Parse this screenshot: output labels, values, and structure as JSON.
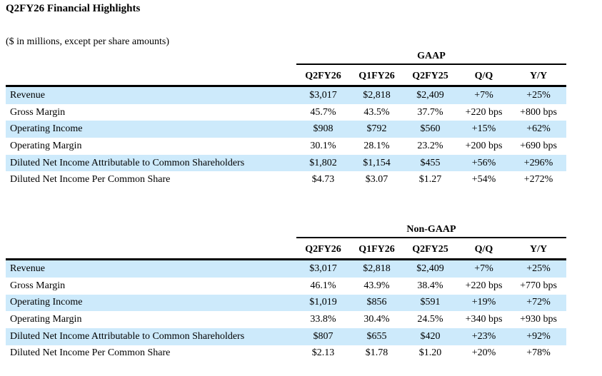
{
  "title": "Q2FY26 Financial Highlights",
  "subtitle": "($ in millions, except per share amounts)",
  "colors": {
    "stripe": "#cdeafb",
    "text": "#000000"
  },
  "tables": [
    {
      "group": "GAAP",
      "columns": [
        "Q2FY26",
        "Q1FY26",
        "Q2FY25",
        "Q/Q",
        "Y/Y"
      ],
      "rows": [
        {
          "label": "Revenue",
          "values": [
            "$3,017",
            "$2,818",
            "$2,409",
            "+7%",
            "+25%"
          ]
        },
        {
          "label": "Gross Margin",
          "values": [
            "45.7%",
            "43.5%",
            "37.7%",
            "+220 bps",
            "+800 bps"
          ]
        },
        {
          "label": "Operating Income",
          "values": [
            "$908",
            "$792",
            "$560",
            "+15%",
            "+62%"
          ]
        },
        {
          "label": "Operating Margin",
          "values": [
            "30.1%",
            "28.1%",
            "23.2%",
            "+200 bps",
            "+690 bps"
          ]
        },
        {
          "label": "Diluted Net Income Attributable to Common Shareholders",
          "values": [
            "$1,802",
            "$1,154",
            "$455",
            "+56%",
            "+296%"
          ]
        },
        {
          "label": "Diluted Net Income Per Common Share",
          "values": [
            "$4.73",
            "$3.07",
            "$1.27",
            "+54%",
            "+272%"
          ]
        }
      ]
    },
    {
      "group": "Non-GAAP",
      "columns": [
        "Q2FY26",
        "Q1FY26",
        "Q2FY25",
        "Q/Q",
        "Y/Y"
      ],
      "rows": [
        {
          "label": "Revenue",
          "values": [
            "$3,017",
            "$2,818",
            "$2,409",
            "+7%",
            "+25%"
          ]
        },
        {
          "label": "Gross Margin",
          "values": [
            "46.1%",
            "43.9%",
            "38.4%",
            "+220 bps",
            "+770 bps"
          ]
        },
        {
          "label": "Operating Income",
          "values": [
            "$1,019",
            "$856",
            "$591",
            "+19%",
            "+72%"
          ]
        },
        {
          "label": "Operating Margin",
          "values": [
            "33.8%",
            "30.4%",
            "24.5%",
            "+340 bps",
            "+930 bps"
          ]
        },
        {
          "label": "Diluted Net Income Attributable to Common Shareholders",
          "values": [
            "$807",
            "$655",
            "$420",
            "+23%",
            "+92%"
          ]
        },
        {
          "label": "Diluted Net Income Per Common Share",
          "values": [
            "$2.13",
            "$1.78",
            "$1.20",
            "+20%",
            "+78%"
          ]
        }
      ]
    }
  ]
}
